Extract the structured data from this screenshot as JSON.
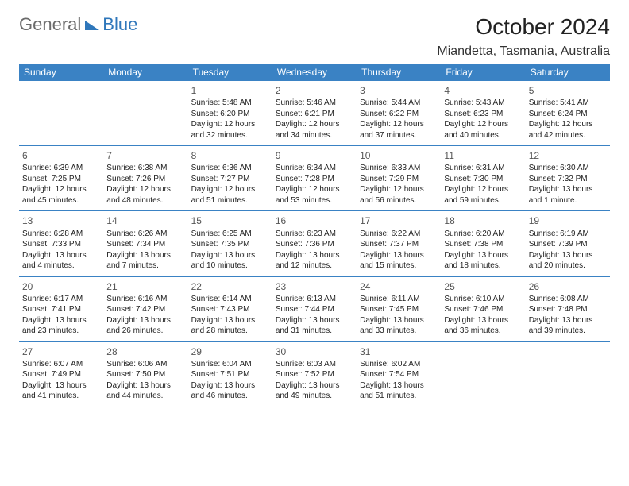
{
  "logo": {
    "part1": "General",
    "part2": "Blue"
  },
  "title": "October 2024",
  "location": "Miandetta, Tasmania, Australia",
  "colors": {
    "header_bg": "#3a82c4",
    "header_text": "#ffffff",
    "divider": "#3a82c4",
    "logo_gray": "#6b6b6b",
    "logo_blue": "#2f77bb"
  },
  "days_of_week": [
    "Sunday",
    "Monday",
    "Tuesday",
    "Wednesday",
    "Thursday",
    "Friday",
    "Saturday"
  ],
  "weeks": [
    [
      null,
      null,
      {
        "n": "1",
        "sr": "Sunrise: 5:48 AM",
        "ss": "Sunset: 6:20 PM",
        "d1": "Daylight: 12 hours",
        "d2": "and 32 minutes."
      },
      {
        "n": "2",
        "sr": "Sunrise: 5:46 AM",
        "ss": "Sunset: 6:21 PM",
        "d1": "Daylight: 12 hours",
        "d2": "and 34 minutes."
      },
      {
        "n": "3",
        "sr": "Sunrise: 5:44 AM",
        "ss": "Sunset: 6:22 PM",
        "d1": "Daylight: 12 hours",
        "d2": "and 37 minutes."
      },
      {
        "n": "4",
        "sr": "Sunrise: 5:43 AM",
        "ss": "Sunset: 6:23 PM",
        "d1": "Daylight: 12 hours",
        "d2": "and 40 minutes."
      },
      {
        "n": "5",
        "sr": "Sunrise: 5:41 AM",
        "ss": "Sunset: 6:24 PM",
        "d1": "Daylight: 12 hours",
        "d2": "and 42 minutes."
      }
    ],
    [
      {
        "n": "6",
        "sr": "Sunrise: 6:39 AM",
        "ss": "Sunset: 7:25 PM",
        "d1": "Daylight: 12 hours",
        "d2": "and 45 minutes."
      },
      {
        "n": "7",
        "sr": "Sunrise: 6:38 AM",
        "ss": "Sunset: 7:26 PM",
        "d1": "Daylight: 12 hours",
        "d2": "and 48 minutes."
      },
      {
        "n": "8",
        "sr": "Sunrise: 6:36 AM",
        "ss": "Sunset: 7:27 PM",
        "d1": "Daylight: 12 hours",
        "d2": "and 51 minutes."
      },
      {
        "n": "9",
        "sr": "Sunrise: 6:34 AM",
        "ss": "Sunset: 7:28 PM",
        "d1": "Daylight: 12 hours",
        "d2": "and 53 minutes."
      },
      {
        "n": "10",
        "sr": "Sunrise: 6:33 AM",
        "ss": "Sunset: 7:29 PM",
        "d1": "Daylight: 12 hours",
        "d2": "and 56 minutes."
      },
      {
        "n": "11",
        "sr": "Sunrise: 6:31 AM",
        "ss": "Sunset: 7:30 PM",
        "d1": "Daylight: 12 hours",
        "d2": "and 59 minutes."
      },
      {
        "n": "12",
        "sr": "Sunrise: 6:30 AM",
        "ss": "Sunset: 7:32 PM",
        "d1": "Daylight: 13 hours",
        "d2": "and 1 minute."
      }
    ],
    [
      {
        "n": "13",
        "sr": "Sunrise: 6:28 AM",
        "ss": "Sunset: 7:33 PM",
        "d1": "Daylight: 13 hours",
        "d2": "and 4 minutes."
      },
      {
        "n": "14",
        "sr": "Sunrise: 6:26 AM",
        "ss": "Sunset: 7:34 PM",
        "d1": "Daylight: 13 hours",
        "d2": "and 7 minutes."
      },
      {
        "n": "15",
        "sr": "Sunrise: 6:25 AM",
        "ss": "Sunset: 7:35 PM",
        "d1": "Daylight: 13 hours",
        "d2": "and 10 minutes."
      },
      {
        "n": "16",
        "sr": "Sunrise: 6:23 AM",
        "ss": "Sunset: 7:36 PM",
        "d1": "Daylight: 13 hours",
        "d2": "and 12 minutes."
      },
      {
        "n": "17",
        "sr": "Sunrise: 6:22 AM",
        "ss": "Sunset: 7:37 PM",
        "d1": "Daylight: 13 hours",
        "d2": "and 15 minutes."
      },
      {
        "n": "18",
        "sr": "Sunrise: 6:20 AM",
        "ss": "Sunset: 7:38 PM",
        "d1": "Daylight: 13 hours",
        "d2": "and 18 minutes."
      },
      {
        "n": "19",
        "sr": "Sunrise: 6:19 AM",
        "ss": "Sunset: 7:39 PM",
        "d1": "Daylight: 13 hours",
        "d2": "and 20 minutes."
      }
    ],
    [
      {
        "n": "20",
        "sr": "Sunrise: 6:17 AM",
        "ss": "Sunset: 7:41 PM",
        "d1": "Daylight: 13 hours",
        "d2": "and 23 minutes."
      },
      {
        "n": "21",
        "sr": "Sunrise: 6:16 AM",
        "ss": "Sunset: 7:42 PM",
        "d1": "Daylight: 13 hours",
        "d2": "and 26 minutes."
      },
      {
        "n": "22",
        "sr": "Sunrise: 6:14 AM",
        "ss": "Sunset: 7:43 PM",
        "d1": "Daylight: 13 hours",
        "d2": "and 28 minutes."
      },
      {
        "n": "23",
        "sr": "Sunrise: 6:13 AM",
        "ss": "Sunset: 7:44 PM",
        "d1": "Daylight: 13 hours",
        "d2": "and 31 minutes."
      },
      {
        "n": "24",
        "sr": "Sunrise: 6:11 AM",
        "ss": "Sunset: 7:45 PM",
        "d1": "Daylight: 13 hours",
        "d2": "and 33 minutes."
      },
      {
        "n": "25",
        "sr": "Sunrise: 6:10 AM",
        "ss": "Sunset: 7:46 PM",
        "d1": "Daylight: 13 hours",
        "d2": "and 36 minutes."
      },
      {
        "n": "26",
        "sr": "Sunrise: 6:08 AM",
        "ss": "Sunset: 7:48 PM",
        "d1": "Daylight: 13 hours",
        "d2": "and 39 minutes."
      }
    ],
    [
      {
        "n": "27",
        "sr": "Sunrise: 6:07 AM",
        "ss": "Sunset: 7:49 PM",
        "d1": "Daylight: 13 hours",
        "d2": "and 41 minutes."
      },
      {
        "n": "28",
        "sr": "Sunrise: 6:06 AM",
        "ss": "Sunset: 7:50 PM",
        "d1": "Daylight: 13 hours",
        "d2": "and 44 minutes."
      },
      {
        "n": "29",
        "sr": "Sunrise: 6:04 AM",
        "ss": "Sunset: 7:51 PM",
        "d1": "Daylight: 13 hours",
        "d2": "and 46 minutes."
      },
      {
        "n": "30",
        "sr": "Sunrise: 6:03 AM",
        "ss": "Sunset: 7:52 PM",
        "d1": "Daylight: 13 hours",
        "d2": "and 49 minutes."
      },
      {
        "n": "31",
        "sr": "Sunrise: 6:02 AM",
        "ss": "Sunset: 7:54 PM",
        "d1": "Daylight: 13 hours",
        "d2": "and 51 minutes."
      },
      null,
      null
    ]
  ]
}
